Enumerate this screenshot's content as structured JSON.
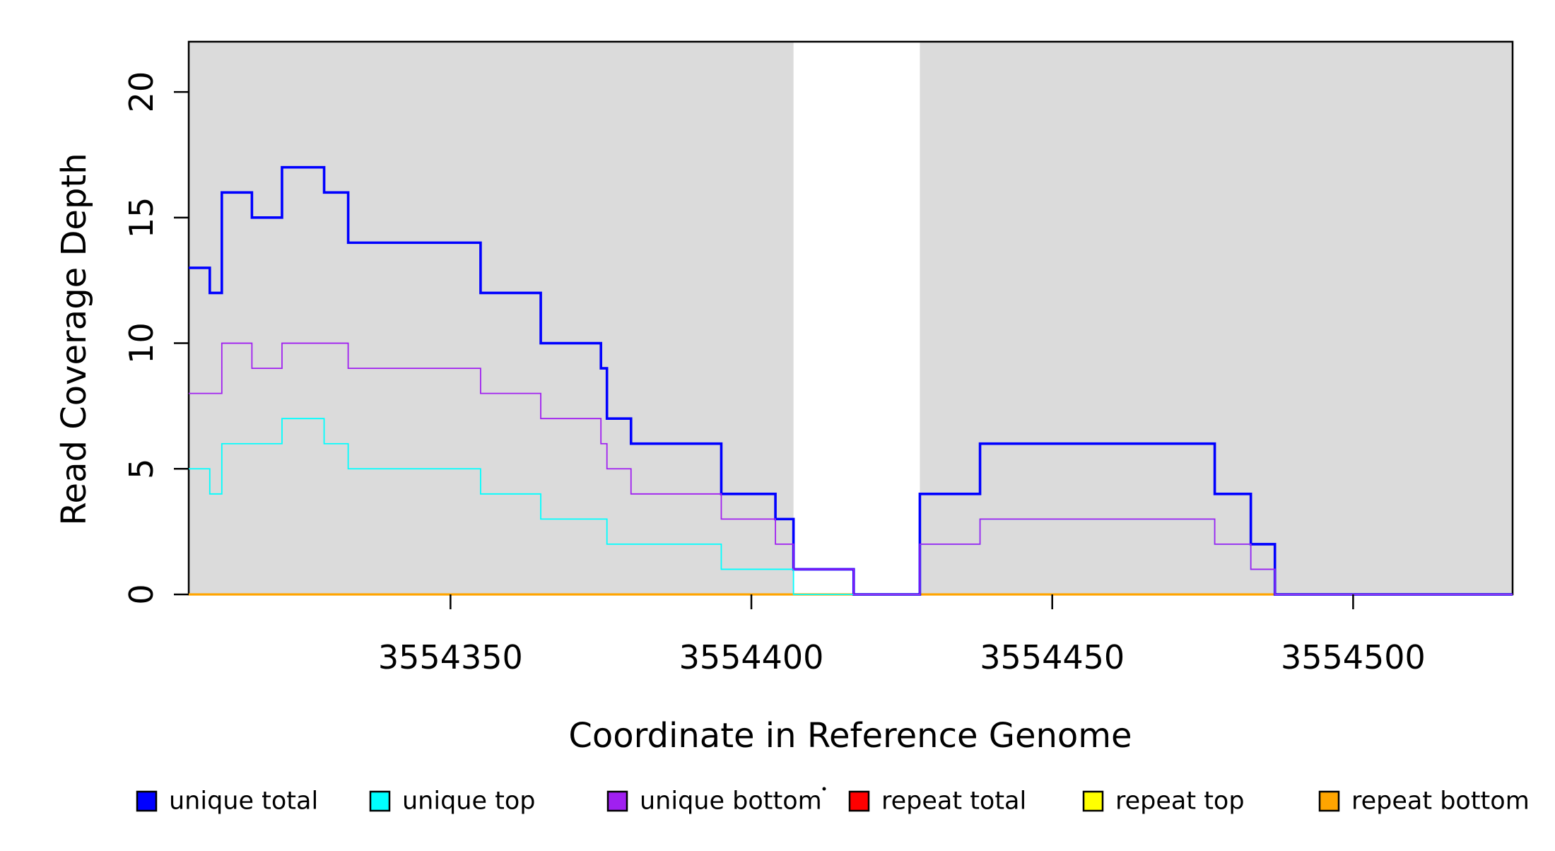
{
  "chart_data": {
    "type": "step",
    "title": "",
    "xlabel": "Coordinate in Reference Genome",
    "ylabel": "Read Coverage Depth",
    "xlim": [
      3554306.5,
      3554526.5
    ],
    "ylim": [
      0,
      22
    ],
    "x_ticks": [
      3554350,
      3554400,
      3554450,
      3554500
    ],
    "y_ticks": [
      0,
      5,
      10,
      15,
      20
    ],
    "grid": false,
    "legend_position": "bottom",
    "shaded_regions": {
      "color": "#DBDBDB",
      "intervals": [
        [
          3554306.5,
          3554407
        ],
        [
          3554428,
          3554526.5
        ]
      ]
    },
    "series": [
      {
        "name": "repeat total",
        "color": "#FF0000",
        "width": 2.2,
        "points": [
          [
            3554306.5,
            0
          ]
        ]
      },
      {
        "name": "repeat top",
        "color": "#FFFF00",
        "width": 2.2,
        "points": [
          [
            3554306.5,
            0
          ]
        ]
      },
      {
        "name": "repeat bottom",
        "color": "#FFA500",
        "width": 3.2,
        "points": [
          [
            3554306.5,
            0
          ]
        ]
      },
      {
        "name": "unique total",
        "color": "#0000FF",
        "width": 3.6,
        "points": [
          [
            3554306.5,
            13
          ],
          [
            3554310,
            12
          ],
          [
            3554312,
            16
          ],
          [
            3554317,
            15
          ],
          [
            3554322,
            17
          ],
          [
            3554329,
            16
          ],
          [
            3554333,
            14
          ],
          [
            3554355,
            12
          ],
          [
            3554365,
            10
          ],
          [
            3554375,
            9
          ],
          [
            3554376,
            7
          ],
          [
            3554380,
            6
          ],
          [
            3554395,
            4
          ],
          [
            3554404,
            3
          ],
          [
            3554407,
            1
          ],
          [
            3554417,
            0
          ],
          [
            3554428,
            4
          ],
          [
            3554438,
            6
          ],
          [
            3554477,
            4
          ],
          [
            3554483,
            2
          ],
          [
            3554487,
            0
          ]
        ]
      },
      {
        "name": "unique top",
        "color": "#00FFFF",
        "width": 1.8,
        "points": [
          [
            3554306.5,
            5
          ],
          [
            3554310,
            4
          ],
          [
            3554312,
            6
          ],
          [
            3554322,
            7
          ],
          [
            3554329,
            6
          ],
          [
            3554333,
            5
          ],
          [
            3554355,
            4
          ],
          [
            3554365,
            3
          ],
          [
            3554376,
            2
          ],
          [
            3554395,
            1
          ],
          [
            3554407,
            0
          ],
          [
            3554428,
            2
          ],
          [
            3554438,
            3
          ],
          [
            3554477,
            2
          ],
          [
            3554483,
            1
          ],
          [
            3554487,
            0
          ]
        ]
      },
      {
        "name": "unique bottom",
        "color": "#A020F0",
        "width": 1.8,
        "points": [
          [
            3554306.5,
            8
          ],
          [
            3554312,
            10
          ],
          [
            3554317,
            9
          ],
          [
            3554322,
            10
          ],
          [
            3554333,
            9
          ],
          [
            3554355,
            8
          ],
          [
            3554365,
            7
          ],
          [
            3554375,
            6
          ],
          [
            3554376,
            5
          ],
          [
            3554380,
            4
          ],
          [
            3554395,
            3
          ],
          [
            3554404,
            2
          ],
          [
            3554407,
            1
          ],
          [
            3554417,
            0
          ],
          [
            3554428,
            2
          ],
          [
            3554438,
            3
          ],
          [
            3554477,
            2
          ],
          [
            3554483,
            1
          ],
          [
            3554487,
            0
          ]
        ]
      }
    ],
    "legend": [
      {
        "label": "unique total",
        "color": "#0000FF"
      },
      {
        "label": "unique top",
        "color": "#00FFFF"
      },
      {
        "label": "unique bottom",
        "color": "#A020F0"
      },
      {
        "label": "repeat total",
        "color": "#FF0000"
      },
      {
        "label": "repeat top",
        "color": "#FFFF00"
      },
      {
        "label": "repeat bottom",
        "color": "#FFA500"
      }
    ]
  }
}
